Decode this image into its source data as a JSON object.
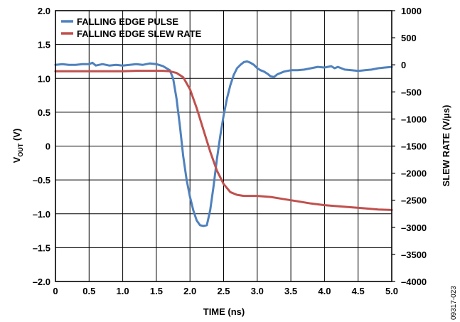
{
  "chart_data": {
    "type": "line",
    "xlabel": "TIME (ns)",
    "ylabel_prefix": "V",
    "ylabel_sub": "OUT",
    "ylabel_suffix": " (V)",
    "y2label": "SLEW RATE (V/µs)",
    "figure_id": "09317-023",
    "xlim": [
      0,
      5.0
    ],
    "ylim": [
      -2.0,
      2.0
    ],
    "y2lim": [
      -4000,
      1000
    ],
    "grid": true,
    "legend_position": "top-left",
    "x_ticks": [
      "0",
      "0.5",
      "1.0",
      "1.5",
      "2.0",
      "2.5",
      "3.0",
      "3.5",
      "4.0",
      "4.5",
      "5.0"
    ],
    "y_ticks": [
      "2.0",
      "1.5",
      "1.0",
      "0.5",
      "0",
      "–0.5",
      "–1.0",
      "–1.5",
      "–2.0"
    ],
    "y2_ticks": [
      "1000",
      "500",
      "0",
      "–500",
      "–1000",
      "–1500",
      "–2000",
      "–2500",
      "–3000",
      "–3500",
      "–4000"
    ],
    "series": [
      {
        "name": "FALLING EDGE PULSE",
        "axis": "left",
        "color": "#4f81bd",
        "x": [
          0,
          0.1,
          0.2,
          0.3,
          0.4,
          0.5,
          0.55,
          0.6,
          0.7,
          0.8,
          0.9,
          1.0,
          1.1,
          1.2,
          1.3,
          1.4,
          1.5,
          1.6,
          1.7,
          1.75,
          1.8,
          1.85,
          1.9,
          1.95,
          2.0,
          2.05,
          2.1,
          2.15,
          2.2,
          2.25,
          2.3,
          2.35,
          2.4,
          2.45,
          2.5,
          2.55,
          2.6,
          2.65,
          2.7,
          2.75,
          2.8,
          2.85,
          2.9,
          2.95,
          3.0,
          3.05,
          3.1,
          3.15,
          3.2,
          3.25,
          3.3,
          3.4,
          3.5,
          3.6,
          3.7,
          3.8,
          3.9,
          4.0,
          4.1,
          4.15,
          4.2,
          4.3,
          4.4,
          4.5,
          4.6,
          4.7,
          4.8,
          4.9,
          5.0
        ],
        "y": [
          1.2,
          1.21,
          1.2,
          1.2,
          1.21,
          1.21,
          1.23,
          1.19,
          1.21,
          1.19,
          1.2,
          1.19,
          1.2,
          1.21,
          1.2,
          1.22,
          1.21,
          1.18,
          1.12,
          1.0,
          0.7,
          0.3,
          -0.15,
          -0.5,
          -0.75,
          -0.95,
          -1.1,
          -1.17,
          -1.18,
          -1.17,
          -0.95,
          -0.6,
          -0.2,
          0.15,
          0.45,
          0.7,
          0.9,
          1.05,
          1.15,
          1.2,
          1.24,
          1.25,
          1.23,
          1.2,
          1.15,
          1.12,
          1.1,
          1.07,
          1.03,
          1.02,
          1.06,
          1.1,
          1.12,
          1.12,
          1.13,
          1.15,
          1.17,
          1.16,
          1.18,
          1.15,
          1.17,
          1.13,
          1.12,
          1.11,
          1.12,
          1.13,
          1.15,
          1.16,
          1.17
        ]
      },
      {
        "name": "FALLING EDGE SLEW RATE",
        "axis": "right",
        "color": "#c0504d",
        "x": [
          0,
          0.2,
          0.4,
          0.6,
          0.8,
          1.0,
          1.2,
          1.4,
          1.6,
          1.7,
          1.8,
          1.9,
          2.0,
          2.1,
          2.2,
          2.3,
          2.4,
          2.5,
          2.6,
          2.7,
          2.8,
          2.9,
          3.0,
          3.1,
          3.2,
          3.4,
          3.6,
          3.8,
          4.0,
          4.2,
          4.4,
          4.6,
          4.8,
          5.0
        ],
        "y": [
          -120,
          -120,
          -120,
          -120,
          -120,
          -120,
          -110,
          -110,
          -110,
          -120,
          -150,
          -230,
          -450,
          -800,
          -1200,
          -1600,
          -1950,
          -2200,
          -2350,
          -2400,
          -2420,
          -2420,
          -2420,
          -2430,
          -2440,
          -2480,
          -2520,
          -2560,
          -2590,
          -2610,
          -2630,
          -2650,
          -2670,
          -2680
        ]
      }
    ]
  }
}
